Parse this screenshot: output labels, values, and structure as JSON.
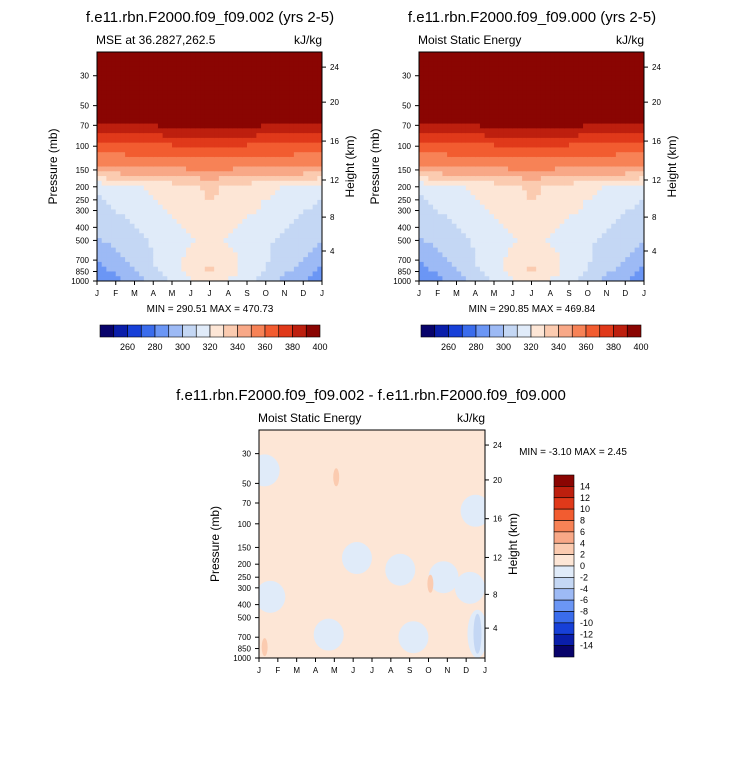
{
  "chart_data": [
    {
      "type": "heatmap",
      "title": "f.e11.rbn.F2000.f09_f09.002 (yrs 2-5)",
      "subtitle_left": "MSE at 36.2827,262.5",
      "units": "kJ/kg",
      "xlabel": "",
      "ylabel": "Pressure (mb)",
      "ylabel_right": "Height (km)",
      "x_ticks": [
        "J",
        "F",
        "M",
        "A",
        "M",
        "J",
        "J",
        "A",
        "S",
        "O",
        "N",
        "D",
        "J"
      ],
      "y_ticks": [
        30,
        50,
        70,
        100,
        150,
        200,
        250,
        300,
        400,
        500,
        700,
        850,
        1000
      ],
      "y_ticks_right": [
        24,
        20,
        16,
        12,
        8,
        4
      ],
      "ylim": [
        1000,
        20
      ],
      "stats": "MIN = 290.51 MAX = 470.73",
      "colorbar": {
        "labels": [
          "260",
          "280",
          "300",
          "320",
          "340",
          "360",
          "380",
          "400"
        ],
        "colors": [
          "#08036b",
          "#0a1eaa",
          "#1740d8",
          "#3a6cec",
          "#6b96f5",
          "#9dbaf5",
          "#c4d7f4",
          "#e0ebf9",
          "#fde6d6",
          "#fbcbb0",
          "#f8a887",
          "#f78256",
          "#f25c30",
          "#e0391a",
          "#bd1f0e",
          "#8a0502"
        ]
      },
      "bands": [
        {
          "p": 20,
          "a": 470,
          "m": 470,
          "d": 470
        },
        {
          "p": 48,
          "a": 470,
          "m": 470,
          "d": 470
        },
        {
          "p": 70,
          "a": 398,
          "m": 403,
          "d": 398
        },
        {
          "p": 100,
          "a": 376,
          "m": 380,
          "d": 376
        },
        {
          "p": 150,
          "a": 356,
          "m": 360,
          "d": 356
        },
        {
          "p": 200,
          "a": 322,
          "m": 342,
          "d": 323
        },
        {
          "p": 300,
          "a": 316,
          "m": 339,
          "d": 317
        },
        {
          "p": 500,
          "a": 309,
          "m": 333,
          "d": 310
        },
        {
          "p": 700,
          "a": 301,
          "m": 339,
          "d": 304
        },
        {
          "p": 850,
          "a": 294,
          "m": 342,
          "d": 297
        },
        {
          "p": 1000,
          "a": 290,
          "m": 336,
          "d": 293
        }
      ]
    },
    {
      "type": "heatmap",
      "title": "f.e11.rbn.F2000.f09_f09.000 (yrs 2-5)",
      "subtitle_left": "Moist Static Energy",
      "units": "kJ/kg",
      "xlabel": "",
      "ylabel": "Pressure (mb)",
      "ylabel_right": "Height (km)",
      "x_ticks": [
        "J",
        "F",
        "M",
        "A",
        "M",
        "J",
        "J",
        "A",
        "S",
        "O",
        "N",
        "D",
        "J"
      ],
      "y_ticks": [
        30,
        50,
        70,
        100,
        150,
        200,
        250,
        300,
        400,
        500,
        700,
        850,
        1000
      ],
      "y_ticks_right": [
        24,
        20,
        16,
        12,
        8,
        4
      ],
      "ylim": [
        1000,
        20
      ],
      "stats": "MIN = 290.85 MAX = 469.84",
      "colorbar": {
        "labels": [
          "260",
          "280",
          "300",
          "320",
          "340",
          "360",
          "380",
          "400"
        ],
        "colors": [
          "#08036b",
          "#0a1eaa",
          "#1740d8",
          "#3a6cec",
          "#6b96f5",
          "#9dbaf5",
          "#c4d7f4",
          "#e0ebf9",
          "#fde6d6",
          "#fbcbb0",
          "#f8a887",
          "#f78256",
          "#f25c30",
          "#e0391a",
          "#bd1f0e",
          "#8a0502"
        ]
      },
      "bands": [
        {
          "p": 20,
          "a": 470,
          "m": 470,
          "d": 470
        },
        {
          "p": 48,
          "a": 470,
          "m": 470,
          "d": 470
        },
        {
          "p": 70,
          "a": 398,
          "m": 403,
          "d": 398
        },
        {
          "p": 100,
          "a": 376,
          "m": 380,
          "d": 376
        },
        {
          "p": 150,
          "a": 356,
          "m": 360,
          "d": 356
        },
        {
          "p": 200,
          "a": 322,
          "m": 342,
          "d": 323
        },
        {
          "p": 300,
          "a": 316,
          "m": 339,
          "d": 317
        },
        {
          "p": 500,
          "a": 309,
          "m": 333,
          "d": 310
        },
        {
          "p": 700,
          "a": 301,
          "m": 339,
          "d": 304
        },
        {
          "p": 850,
          "a": 294,
          "m": 342,
          "d": 297
        },
        {
          "p": 1000,
          "a": 290,
          "m": 336,
          "d": 293
        }
      ]
    },
    {
      "type": "heatmap",
      "title": "f.e11.rbn.F2000.f09_f09.002 - f.e11.rbn.F2000.f09_f09.000",
      "subtitle_left": "Moist Static Energy",
      "units": "kJ/kg",
      "xlabel": "",
      "ylabel": "Pressure (mb)",
      "ylabel_right": "Height (km)",
      "x_ticks": [
        "J",
        "F",
        "M",
        "A",
        "M",
        "J",
        "J",
        "A",
        "S",
        "O",
        "N",
        "D",
        "J"
      ],
      "y_ticks": [
        30,
        50,
        70,
        100,
        150,
        200,
        250,
        300,
        400,
        500,
        700,
        850,
        1000
      ],
      "y_ticks_right": [
        24,
        20,
        16,
        12,
        8,
        4
      ],
      "ylim": [
        1000,
        20
      ],
      "stats": "MIN =  -3.10 MAX =   2.45",
      "colorbar": {
        "labels": [
          "14",
          "12",
          "10",
          "8",
          "6",
          "4",
          "2",
          "0",
          "-2",
          "-4",
          "-6",
          "-8",
          "-10",
          "-12",
          "-14"
        ],
        "colors": [
          "#8a0502",
          "#bd1f0e",
          "#e0391a",
          "#f25c30",
          "#f78256",
          "#f8a887",
          "#fbcbb0",
          "#fde6d6",
          "#e0ebf9",
          "#c4d7f4",
          "#9dbaf5",
          "#6b96f5",
          "#3a6cec",
          "#1740d8",
          "#0a1eaa",
          "#08036b"
        ]
      },
      "background_value": 0.5,
      "negative_regions": [
        {
          "month": 0.3,
          "p": 40,
          "value": -0.5
        },
        {
          "month": 0.6,
          "p": 350,
          "value": -0.5
        },
        {
          "month": 3.7,
          "p": 670,
          "value": -1.0
        },
        {
          "month": 5.2,
          "p": 180,
          "value": -0.5
        },
        {
          "month": 7.5,
          "p": 220,
          "value": -0.5
        },
        {
          "month": 8.2,
          "p": 700,
          "value": -0.5
        },
        {
          "month": 9.8,
          "p": 250,
          "value": -0.5
        },
        {
          "month": 11.2,
          "p": 300,
          "value": -0.5
        },
        {
          "month": 11.5,
          "p": 80,
          "value": -0.5
        },
        {
          "month": 11.6,
          "p": 660,
          "value": -3.1
        }
      ],
      "positive_regions": [
        {
          "month": 0.3,
          "p": 830,
          "value": 2.45
        },
        {
          "month": 4.1,
          "p": 45,
          "value": 2.0
        },
        {
          "month": 9.1,
          "p": 280,
          "value": 2.0
        }
      ]
    }
  ]
}
